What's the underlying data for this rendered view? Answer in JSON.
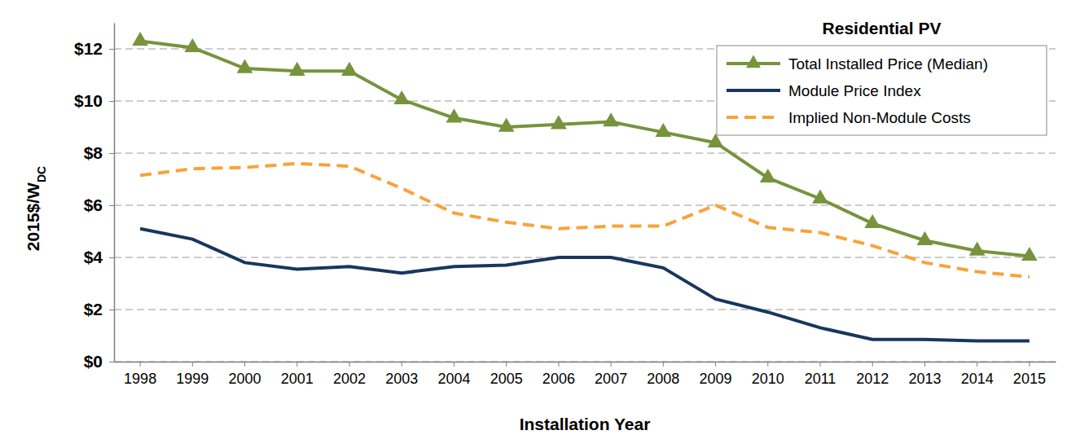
{
  "chart_data": {
    "type": "line",
    "title": "Residential PV",
    "xlabel": "Installation Year",
    "ylabel": {
      "text": "2015$/W",
      "subscript": "DC"
    },
    "categories": [
      "1998",
      "1999",
      "2000",
      "2001",
      "2002",
      "2003",
      "2004",
      "2005",
      "2006",
      "2007",
      "2008",
      "2009",
      "2010",
      "2011",
      "2012",
      "2013",
      "2014",
      "2015"
    ],
    "series": [
      {
        "name": "Total Installed Price (Median)",
        "color": "#77933C",
        "marker": "triangle",
        "line_style": "solid",
        "values": [
          12.3,
          12.05,
          11.25,
          11.15,
          11.15,
          10.05,
          9.35,
          9.0,
          9.1,
          9.2,
          8.8,
          8.4,
          7.05,
          6.25,
          5.3,
          4.65,
          4.25,
          4.05
        ]
      },
      {
        "name": "Module Price Index",
        "color": "#17375E",
        "line_style": "solid",
        "values": [
          5.1,
          4.7,
          3.8,
          3.55,
          3.65,
          3.4,
          3.65,
          3.7,
          4.0,
          4.0,
          3.6,
          2.4,
          1.9,
          1.3,
          0.85,
          0.85,
          0.8,
          0.8
        ]
      },
      {
        "name": "Implied Non-Module Costs",
        "color": "#F9A23A",
        "line_style": "dashed",
        "values": [
          7.15,
          7.4,
          7.45,
          7.6,
          7.5,
          6.65,
          5.7,
          5.35,
          5.1,
          5.2,
          5.2,
          6.0,
          5.15,
          4.95,
          4.45,
          3.8,
          3.45,
          3.25
        ]
      }
    ],
    "ylim": [
      0,
      13
    ],
    "yticks": [
      {
        "value": 0,
        "label": "$0"
      },
      {
        "value": 2,
        "label": "$2"
      },
      {
        "value": 4,
        "label": "$4"
      },
      {
        "value": 6,
        "label": "$6"
      },
      {
        "value": 8,
        "label": "$8"
      },
      {
        "value": 10,
        "label": "$10"
      },
      {
        "value": 12,
        "label": "$12"
      }
    ],
    "grid": true,
    "legend": "upper right"
  }
}
